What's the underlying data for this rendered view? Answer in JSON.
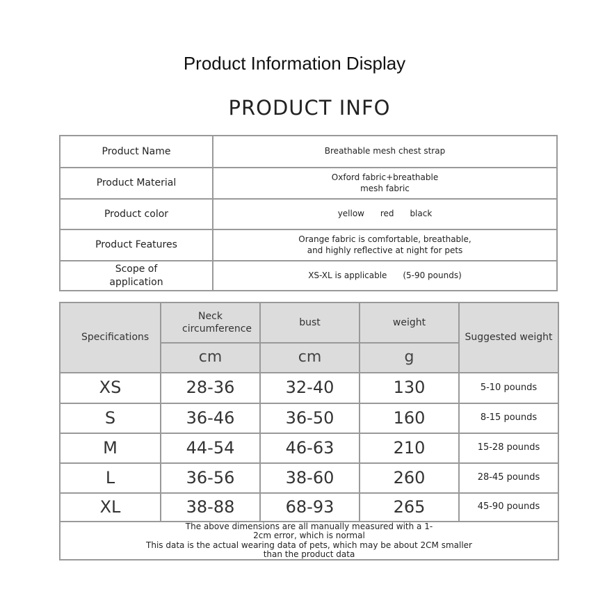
{
  "title": "Product Information Display",
  "subtitle": "PRODUCT INFO",
  "info": [
    {
      "label": "Product Name",
      "value": "Breathable mesh chest strap"
    },
    {
      "label": "Product Material",
      "value": "Oxford fabric+breathable mesh fabric"
    },
    {
      "label": "Product color",
      "value": "yellow      red      black"
    },
    {
      "label": "Product Features",
      "value": "Orange fabric is comfortable, breathable, and highly reflective at night for pets"
    },
    {
      "label": "Scope of application",
      "value": "XS-XL is applicable      (5-90 pounds)"
    }
  ],
  "size_table": {
    "headers": {
      "spec": "Specifications",
      "neck": "Neck circumference",
      "bust": "bust",
      "weight": "weight",
      "suggested": "Suggested weight"
    },
    "units": {
      "neck": "cm",
      "bust": "cm",
      "weight": "g"
    },
    "rows": [
      {
        "size": "XS",
        "neck": "28-36",
        "bust": "32-40",
        "weight": "130",
        "suggested": "5-10 pounds"
      },
      {
        "size": "S",
        "neck": "36-46",
        "bust": "36-50",
        "weight": "160",
        "suggested": "8-15 pounds"
      },
      {
        "size": "M",
        "neck": "44-54",
        "bust": "46-63",
        "weight": "210",
        "suggested": "15-28 pounds"
      },
      {
        "size": "L",
        "neck": "36-56",
        "bust": "38-60",
        "weight": "260",
        "suggested": "28-45 pounds"
      },
      {
        "size": "XL",
        "neck": "38-88",
        "bust": "68-93",
        "weight": "265",
        "suggested": "45-90 pounds"
      }
    ],
    "footnote_1": "The above dimensions are all manually measured with a 1-2cm error, which is normal",
    "footnote_2": "This data is the actual wearing data of pets, which may be about 2CM smaller than the product data"
  }
}
